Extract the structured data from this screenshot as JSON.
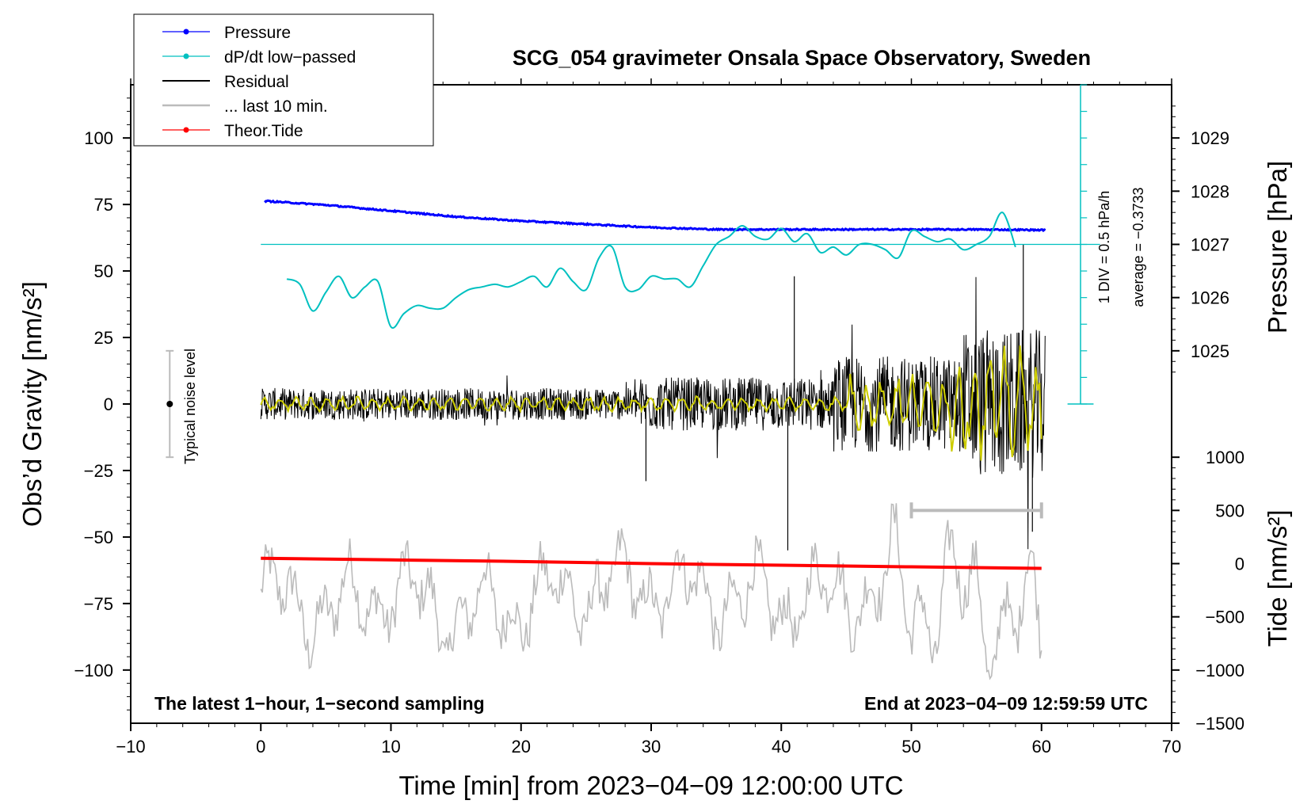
{
  "chart_data": {
    "type": "line",
    "title": "SCG_054 gravimeter Onsala Space Observatory, Sweden",
    "xlabel": "Time [min] from 2023−04−09 12:00:00 UTC",
    "ylabel_left": "Obs’d Gravity [nm/s²]",
    "ylabel_right_top": "Pressure [hPa]",
    "ylabel_right_bottom": "Tide [nm/s²]",
    "xlim": [
      -10,
      70
    ],
    "ylim": [
      -120,
      120
    ],
    "x_ticks": [
      -10,
      0,
      10,
      20,
      30,
      40,
      50,
      60,
      70
    ],
    "x_tick_labels": [
      "−10",
      "0",
      "10",
      "20",
      "30",
      "40",
      "50",
      "60",
      "70"
    ],
    "y_ticks": [
      100,
      75,
      50,
      25,
      0,
      -25,
      -50,
      -75,
      -100
    ],
    "y_tick_labels": [
      "100",
      "75",
      "50",
      "25",
      "0",
      "−25",
      "−50",
      "−75",
      "−100"
    ],
    "pressure_axis": {
      "ticks": [
        1029,
        1028,
        1027,
        1026,
        1025
      ],
      "tick_labels": [
        "1029",
        "1028",
        "1027",
        "1026",
        "1025"
      ],
      "gravity_equiv": [
        100,
        80,
        60,
        40,
        20
      ]
    },
    "tide_axis": {
      "ticks": [
        1000,
        500,
        0,
        -500,
        -1000,
        -1500
      ],
      "tick_labels": [
        "1000",
        "500",
        "0",
        "−500",
        "−1000",
        "−1500"
      ],
      "gravity_equiv": [
        -20,
        -40,
        -60,
        -80,
        -100,
        -120
      ]
    },
    "legend": [
      {
        "label": "Pressure",
        "color": "#0000ff",
        "marker": true
      },
      {
        "label": "dP/dt low−passed",
        "color": "#00c0c0",
        "marker": true
      },
      {
        "label": "Residual",
        "color": "#000000",
        "marker": false
      },
      {
        "label": "... last 10 min.",
        "color": "#bbbbbb",
        "marker": false
      },
      {
        "label": "Theor.Tide",
        "color": "#ff0000",
        "marker": true
      }
    ],
    "annotations": {
      "bottom_left": "The latest 1−hour, 1−second sampling",
      "bottom_right": "End at 2023−04−09 12:59:59 UTC",
      "noise_label": "Typical noise level",
      "dpdt_scale": "1 DIV = 0.5 hPa/h",
      "dpdt_average": "average = −0.3733"
    },
    "series": [
      {
        "name": "Pressure",
        "color": "#0000ff",
        "axis": "pressure_hPa",
        "x": [
          0,
          5,
          10,
          15,
          20,
          25,
          30,
          35,
          40,
          45,
          50,
          55,
          60
        ],
        "values": [
          1027.82,
          1027.74,
          1027.63,
          1027.52,
          1027.44,
          1027.38,
          1027.32,
          1027.28,
          1027.28,
          1027.28,
          1027.28,
          1027.28,
          1027.27
        ]
      },
      {
        "name": "dP/dt low−passed",
        "color": "#00c0c0",
        "axis": "gravity_equivalent",
        "x": [
          2,
          3,
          4,
          5,
          6,
          7,
          8,
          9,
          10,
          11,
          12,
          13,
          14,
          15,
          16,
          17,
          18,
          19,
          20,
          21,
          22,
          23,
          24,
          25,
          26,
          27,
          28,
          29,
          30,
          31,
          32,
          33,
          34,
          35,
          36,
          37,
          38,
          39,
          40,
          41,
          42,
          43,
          44,
          45,
          46,
          47,
          48,
          49,
          50,
          51,
          52,
          53,
          54,
          55,
          56,
          57,
          58
        ],
        "values": [
          47,
          45,
          35,
          42,
          48,
          40,
          44,
          46,
          29,
          34,
          37,
          36,
          36,
          40,
          43,
          44,
          45,
          44,
          46,
          48,
          44,
          51,
          46,
          43,
          55,
          59,
          44,
          43,
          48,
          47,
          47,
          44,
          52,
          60,
          63,
          67,
          63,
          62,
          66,
          61,
          64,
          57,
          59,
          56,
          60,
          60,
          58,
          55,
          65,
          63,
          61,
          62,
          58,
          60,
          63,
          72,
          59
        ]
      },
      {
        "name": "Residual",
        "color": "#000000",
        "axis": "gravity",
        "x": [
          0,
          10,
          20,
          29.6,
          35,
          40.5,
          41,
          45,
          50,
          55,
          58.6,
          59.3,
          60
        ],
        "values": [
          0,
          0,
          0,
          -29,
          0,
          -55,
          48,
          0,
          0,
          0,
          60,
          -48,
          -13
        ]
      },
      {
        "name": "... last 10 min.",
        "color": "#bbbbbb",
        "axis": "gravity",
        "x": [
          0,
          5,
          10,
          15,
          20,
          25,
          30,
          35,
          40,
          45,
          50,
          55,
          60
        ],
        "values": [
          -72,
          -78,
          -70,
          -80,
          -75,
          -70,
          -68,
          -72,
          -75,
          -70,
          -72,
          -74,
          -86
        ]
      },
      {
        "name": "Theor.Tide",
        "color": "#ff0000",
        "axis": "tide_nm_s2",
        "x": [
          0,
          10,
          20,
          30,
          40,
          50,
          60
        ],
        "values": [
          50,
          35,
          20,
          0,
          -15,
          -30,
          -45
        ]
      }
    ]
  }
}
